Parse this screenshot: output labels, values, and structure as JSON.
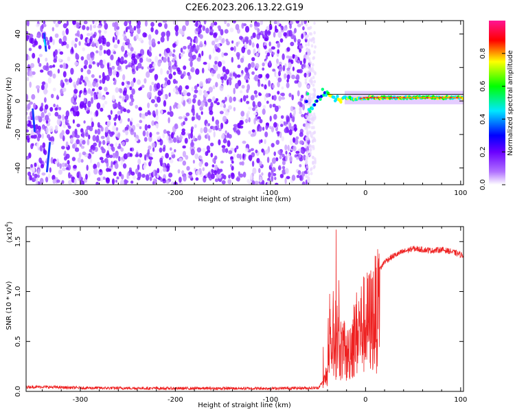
{
  "figure_title": "C2E6.2023.206.13.22.G19",
  "chart_data": [
    {
      "type": "heatmap",
      "title": "C2E6.2023.206.13.22.G19",
      "xlabel": "Height of straight line (km)",
      "ylabel": "Frequency (Hz)",
      "xlim": [
        -357,
        103
      ],
      "ylim": [
        -50,
        48
      ],
      "xticks": [
        -300,
        -200,
        -100,
        0,
        100
      ],
      "yticks": [
        -40,
        -20,
        0,
        20,
        40
      ],
      "colorbar": {
        "label": "Normalized spectral amplitude",
        "range": [
          0.0,
          1.0
        ],
        "ticks": [
          0.0,
          0.2,
          0.4,
          0.6,
          0.8
        ],
        "colormap": [
          "#ffffff",
          "#7000ff",
          "#0000ff",
          "#00e8ff",
          "#00ff00",
          "#ffff00",
          "#ff0000",
          "#ff1493"
        ]
      },
      "features": {
        "noise_region_x": [
          -357,
          -63
        ],
        "signal_onset_x": -63,
        "signal_track": [
          {
            "x": -60,
            "y": -5
          },
          {
            "x": -55,
            "y": -4
          },
          {
            "x": -50,
            "y": 2
          },
          {
            "x": -45,
            "y": 5
          },
          {
            "x": -40,
            "y": 6
          },
          {
            "x": -35,
            "y": 4
          },
          {
            "x": -30,
            "y": 1
          },
          {
            "x": -20,
            "y": 2
          },
          {
            "x": -10,
            "y": 1
          },
          {
            "x": 0,
            "y": 2
          },
          {
            "x": 20,
            "y": 2
          },
          {
            "x": 50,
            "y": 2
          },
          {
            "x": 80,
            "y": 2
          },
          {
            "x": 100,
            "y": 2
          }
        ]
      }
    },
    {
      "type": "line",
      "xlabel": "Height of straight line (km)",
      "ylabel": "SNR (10 * v/v)",
      "y_multiplier": "(x10",
      "y_multiplier_exp": "4",
      "xlim": [
        -357,
        103
      ],
      "ylim": [
        0,
        1.65
      ],
      "xticks": [
        -300,
        -200,
        -100,
        0,
        100
      ],
      "yticks": [
        0.0,
        0.5,
        1.0,
        1.5
      ],
      "color": "#ee2020",
      "envelope": [
        {
          "x": -357,
          "y": 0.03
        },
        {
          "x": -340,
          "y": 0.03
        },
        {
          "x": -300,
          "y": 0.02
        },
        {
          "x": -200,
          "y": 0.015
        },
        {
          "x": -100,
          "y": 0.015
        },
        {
          "x": -50,
          "y": 0.02
        },
        {
          "x": -45,
          "y": 0.08
        },
        {
          "x": -40,
          "y": 0.3
        },
        {
          "x": -35,
          "y": 0.7
        },
        {
          "x": -30,
          "y": 0.8
        },
        {
          "x": -25,
          "y": 0.6
        },
        {
          "x": -20,
          "y": 0.5
        },
        {
          "x": -15,
          "y": 0.7
        },
        {
          "x": -10,
          "y": 0.85
        },
        {
          "x": -5,
          "y": 0.95
        },
        {
          "x": 0,
          "y": 1.0
        },
        {
          "x": 5,
          "y": 1.05
        },
        {
          "x": 10,
          "y": 1.15
        },
        {
          "x": 15,
          "y": 1.22
        },
        {
          "x": 20,
          "y": 1.3
        },
        {
          "x": 30,
          "y": 1.36
        },
        {
          "x": 40,
          "y": 1.4
        },
        {
          "x": 50,
          "y": 1.43
        },
        {
          "x": 60,
          "y": 1.42
        },
        {
          "x": 70,
          "y": 1.41
        },
        {
          "x": 80,
          "y": 1.42
        },
        {
          "x": 90,
          "y": 1.4
        },
        {
          "x": 100,
          "y": 1.37
        },
        {
          "x": 103,
          "y": 1.36
        }
      ],
      "peak_y": 1.62
    }
  ]
}
